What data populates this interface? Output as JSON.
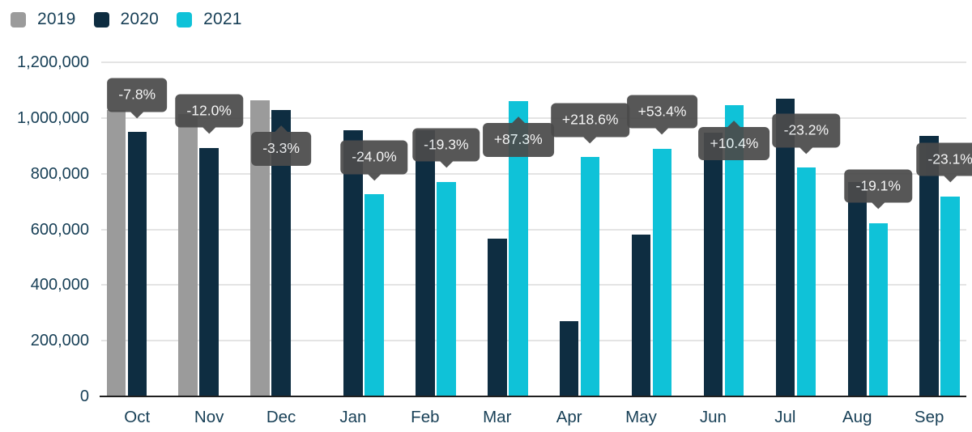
{
  "chart_data": {
    "type": "bar",
    "title": "",
    "categories": [
      "Oct",
      "Nov",
      "Dec",
      "Jan",
      "Feb",
      "Mar",
      "Apr",
      "May",
      "Jun",
      "Jul",
      "Aug",
      "Sep"
    ],
    "series": [
      {
        "name": "2019",
        "color": "#9b9b9b",
        "values": [
          1030000,
          1015000,
          1063000,
          null,
          null,
          null,
          null,
          null,
          null,
          null,
          null,
          null
        ]
      },
      {
        "name": "2020",
        "color": "#0e2d41",
        "values": [
          950000,
          893000,
          1028000,
          955000,
          955000,
          566000,
          270000,
          580000,
          948000,
          1070000,
          770000,
          935000
        ]
      },
      {
        "name": "2021",
        "color": "#0fc2d8",
        "values": [
          null,
          null,
          null,
          726000,
          771000,
          1060000,
          860000,
          890000,
          1047000,
          822000,
          623000,
          719000
        ]
      }
    ],
    "annotations": [
      {
        "category": "Oct",
        "label": "-7.8%",
        "anchor_series": "2020",
        "arrow": "down"
      },
      {
        "category": "Nov",
        "label": "-12.0%",
        "anchor_series": "2020",
        "arrow": "down"
      },
      {
        "category": "Dec",
        "label": "-3.3%",
        "anchor_series": "2020",
        "arrow": "up"
      },
      {
        "category": "Jan",
        "label": "-24.0%",
        "anchor_series": "2021",
        "arrow": "down"
      },
      {
        "category": "Feb",
        "label": "-19.3%",
        "anchor_series": "2021",
        "arrow": "down"
      },
      {
        "category": "Mar",
        "label": "+87.3%",
        "anchor_series": "2021",
        "arrow": "up"
      },
      {
        "category": "Apr",
        "label": "+218.6%",
        "anchor_series": "2021",
        "arrow": "down"
      },
      {
        "category": "May",
        "label": "+53.4%",
        "anchor_series": "2021",
        "arrow": "down"
      },
      {
        "category": "Jun",
        "label": "+10.4%",
        "anchor_series": "2021",
        "arrow": "up"
      },
      {
        "category": "Jul",
        "label": "-23.2%",
        "anchor_series": "2021",
        "arrow": "down"
      },
      {
        "category": "Aug",
        "label": "-19.1%",
        "anchor_series": "2021",
        "arrow": "down"
      },
      {
        "category": "Sep",
        "label": "-23.1%",
        "anchor_series": "2021",
        "arrow": "down"
      }
    ],
    "ylim": [
      0,
      1200000
    ],
    "ytick_step": 200000,
    "yticks": [
      "0",
      "200,000",
      "400,000",
      "600,000",
      "800,000",
      "1,000,000",
      "1,200,000"
    ],
    "grid": true,
    "legend_position": "top-left",
    "colors": {
      "axis_text": "#173f56",
      "gridline": "#e4e4e4",
      "baseline": "#1f1f1f",
      "tooltip_bg": "#4b4b4b",
      "tooltip_text": "#f5f5f5"
    }
  }
}
